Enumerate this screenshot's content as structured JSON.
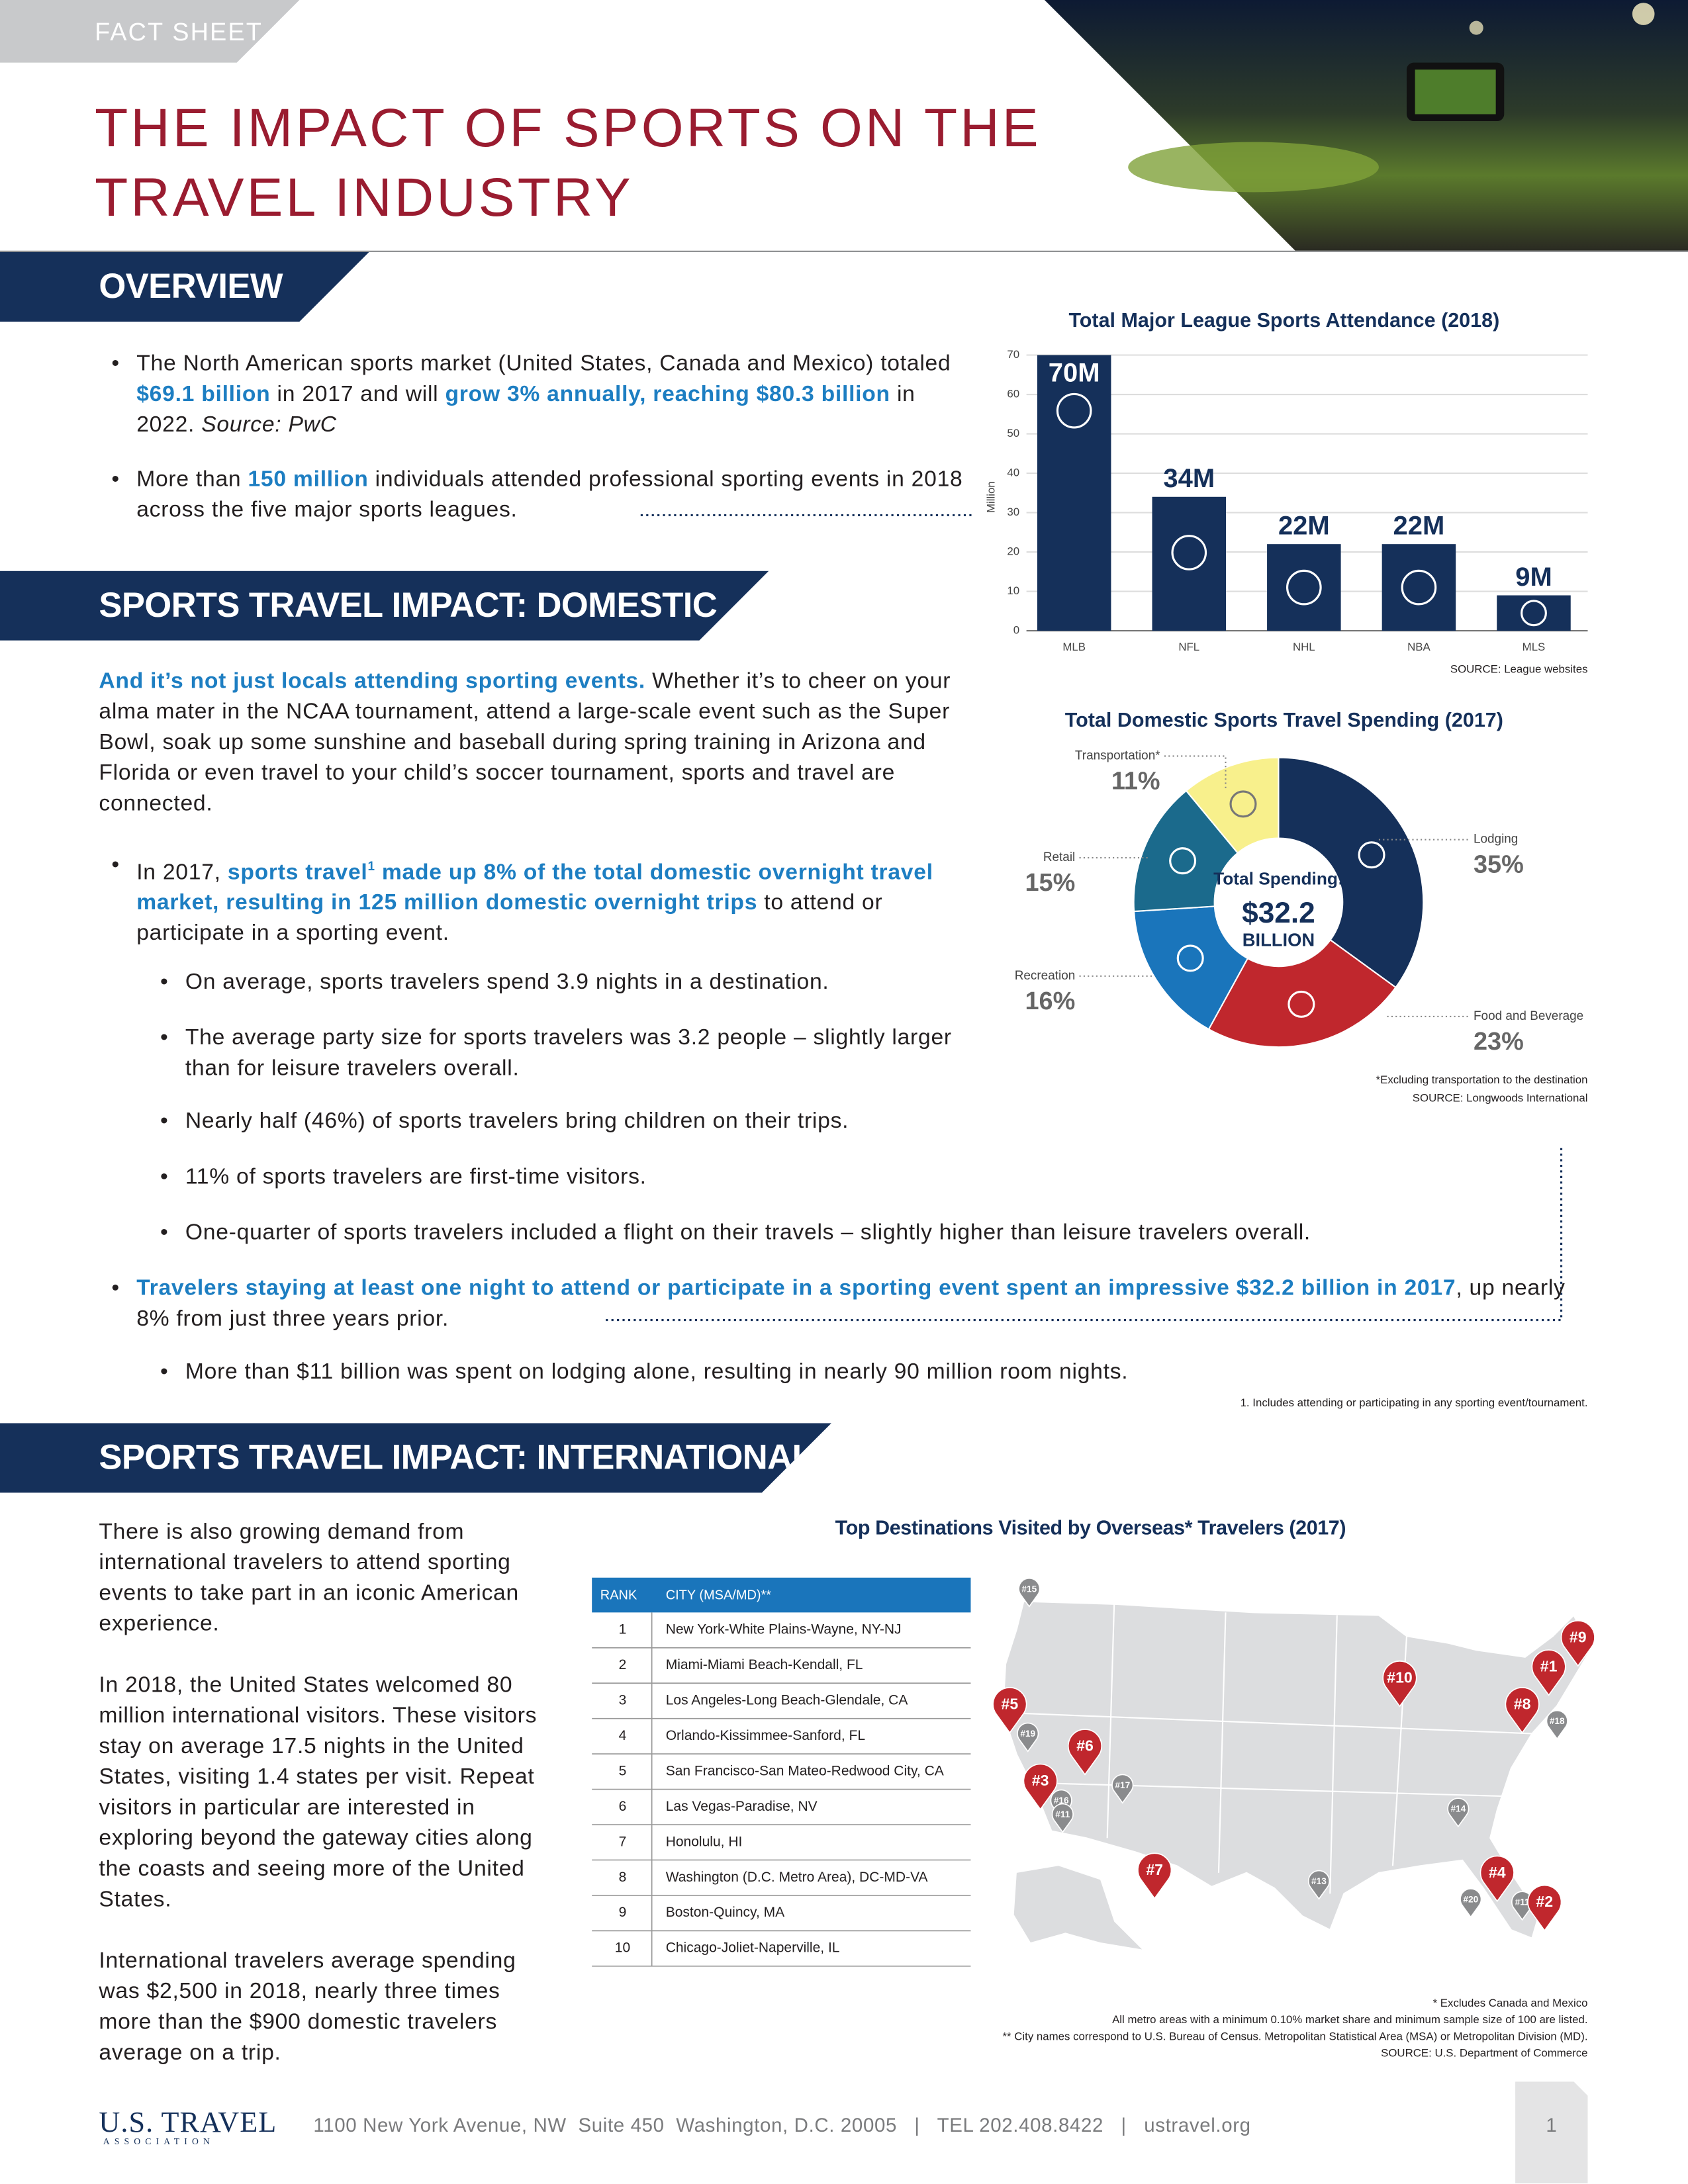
{
  "header": {
    "label": "FACT SHEET",
    "title_lines": [
      "THE IMPACT OF SPORTS ON THE",
      "TRAVEL INDUSTRY"
    ]
  },
  "overview": {
    "heading": "OVERVIEW",
    "bullets": [
      [
        "The North American sports market (United States, Canada and Mexico) totaled ",
        "$69.1 billion",
        " in 2017 and will ",
        "grow 3% annually, reaching $80.3 billion",
        " in 2022. ",
        "Source: PwC"
      ],
      [
        "More than ",
        "150 million",
        " individuals attended professional sporting events in 2018 across the five major sports leagues."
      ]
    ]
  },
  "domestic": {
    "heading": "SPORTS TRAVEL IMPACT: DOMESTIC",
    "intro": [
      "And it’s not just locals attending sporting events.",
      " Whether it’s to cheer on your alma mater in the NCAA tournament, attend a large-scale event such as the Super Bowl, soak up some sunshine and baseball during spring training in Arizona and Florida or even travel to your child’s soccer tournament, sports and travel are connected."
    ],
    "bullet1": [
      "In 2017, ",
      "sports travel",
      "1",
      " made up 8% of the total domestic overnight travel market, resulting in 125 million domestic overnight trips",
      " to attend or participate in a sporting event."
    ],
    "sub1": [
      "On average, sports travelers spend 3.9 nights in a destination.",
      "The average party size for sports travelers was 3.2 people – slightly larger than for leisure travelers overall.",
      "Nearly half (46%) of sports travelers bring children on their trips.",
      "11% of sports travelers are first-time visitors.",
      "One-quarter of sports travelers included a flight on their travels – slightly higher than leisure travelers overall."
    ],
    "bullet2": [
      "Travelers staying at least one night to attend or participate in a sporting event spent an impressive $32.2 billion in 2017",
      ", up nearly 8% from just three years prior."
    ],
    "sub2": [
      "More than $11 billion was spent on lodging alone, resulting in nearly 90 million room nights."
    ],
    "footnote": "1.  Includes attending or participating in any sporting event/tournament."
  },
  "international": {
    "heading": "SPORTS TRAVEL IMPACT: INTERNATIONAL",
    "paragraphs": [
      "There is also growing demand from international travelers to attend sporting events to take part in an iconic American experience.",
      "In 2018, the United States welcomed 80 million international visitors. These visitors stay on average 17.5 nights in the United States, visiting 1.4 states per visit. Repeat visitors in particular are interested in exploring beyond the gateway cities along the coasts and seeing more of the United States.",
      "International travelers average spending was $2,500 in 2018, nearly three times more than the $900 domestic travelers average on a trip."
    ]
  },
  "chart_data": [
    {
      "type": "bar",
      "title": "Total Major League Sports Attendance (2018)",
      "y_label": "Million",
      "categories": [
        "MLB",
        "NFL",
        "NHL",
        "NBA",
        "MLS"
      ],
      "values": [
        70,
        34,
        22,
        22,
        9
      ],
      "value_labels": [
        "70M",
        "34M",
        "22M",
        "22M",
        "9M"
      ],
      "color": "#15305a",
      "ylim": [
        0,
        70
      ],
      "yticks": [
        0,
        10,
        20,
        30,
        40,
        50,
        60,
        70
      ],
      "grid": true,
      "source": "SOURCE: League websites"
    },
    {
      "type": "pie",
      "title": "Total Domestic Sports Travel Spending (2017)",
      "categories": [
        "Lodging",
        "Food and Beverage",
        "Recreation",
        "Retail",
        "Transportation*"
      ],
      "values": [
        35,
        23,
        16,
        15,
        11
      ],
      "value_labels": [
        "35%",
        "23%",
        "16%",
        "15%",
        "11%"
      ],
      "colors": [
        "#15305a",
        "#c0272d",
        "#1a75bb",
        "#1b6a8c",
        "#f8f08c"
      ],
      "center_text": [
        "Total Spending:",
        "$32.2",
        "BILLION"
      ],
      "notes": [
        "*Excluding transportation to the destination",
        "SOURCE: Longwoods International"
      ]
    }
  ],
  "destinations": {
    "title": "Top Destinations Visited by Overseas* Travelers (2017)",
    "table": {
      "header": [
        "RANK",
        "CITY (MSA/MD)**"
      ],
      "rows": [
        [
          1,
          "New York-White Plains-Wayne, NY-NJ"
        ],
        [
          2,
          "Miami-Miami Beach-Kendall, FL"
        ],
        [
          3,
          "Los Angeles-Long Beach-Glendale, CA"
        ],
        [
          4,
          "Orlando-Kissimmee-Sanford, FL"
        ],
        [
          5,
          "San Francisco-San Mateo-Redwood City, CA"
        ],
        [
          6,
          "Las Vegas-Paradise, NV"
        ],
        [
          7,
          "Honolulu, HI"
        ],
        [
          8,
          "Washington (D.C. Metro Area), DC-MD-VA"
        ],
        [
          9,
          "Boston-Quincy, MA"
        ],
        [
          10,
          "Chicago-Joliet-Naperville, IL"
        ]
      ]
    },
    "map_pins": [
      {
        "label": "#15",
        "color": "#8a8b8d"
      },
      {
        "label": "#9",
        "color": "#c0272d"
      },
      {
        "label": "#1",
        "color": "#c0272d"
      },
      {
        "label": "#10",
        "color": "#c0272d"
      },
      {
        "label": "#8",
        "color": "#c0272d"
      },
      {
        "label": "#18",
        "color": "#8a8b8d"
      },
      {
        "label": "#5",
        "color": "#c0272d"
      },
      {
        "label": "#19",
        "color": "#8a8b8d"
      },
      {
        "label": "#6",
        "color": "#c0272d"
      },
      {
        "label": "#3",
        "color": "#c0272d"
      },
      {
        "label": "#16",
        "color": "#8a8b8d"
      },
      {
        "label": "#11",
        "color": "#8a8b8d"
      },
      {
        "label": "#17",
        "color": "#8a8b8d"
      },
      {
        "label": "#14",
        "color": "#8a8b8d"
      },
      {
        "label": "#7",
        "color": "#c0272d"
      },
      {
        "label": "#13",
        "color": "#8a8b8d"
      },
      {
        "label": "#4",
        "color": "#c0272d"
      },
      {
        "label": "#20",
        "color": "#8a8b8d"
      },
      {
        "label": "#11",
        "color": "#8a8b8d"
      },
      {
        "label": "#2",
        "color": "#c0272d"
      }
    ],
    "notes": [
      "* Excludes Canada and Mexico",
      "All metro areas with a minimum 0.10% market share and minimum sample size of 100 are listed.",
      "** City names correspond to U.S. Bureau of Census. Metropolitan Statistical Area (MSA) or Metropolitan Division (MD).",
      "SOURCE: U.S. Department of Commerce"
    ]
  },
  "footer": {
    "logo": "U.S. TRAVEL",
    "logo_sub": "ASSOCIATION",
    "address": "1100 New York Avenue, NW  Suite 450  Washington, D.C. 20005   |   TEL 202.408.8422   |   ustravel.org",
    "page": 1
  }
}
